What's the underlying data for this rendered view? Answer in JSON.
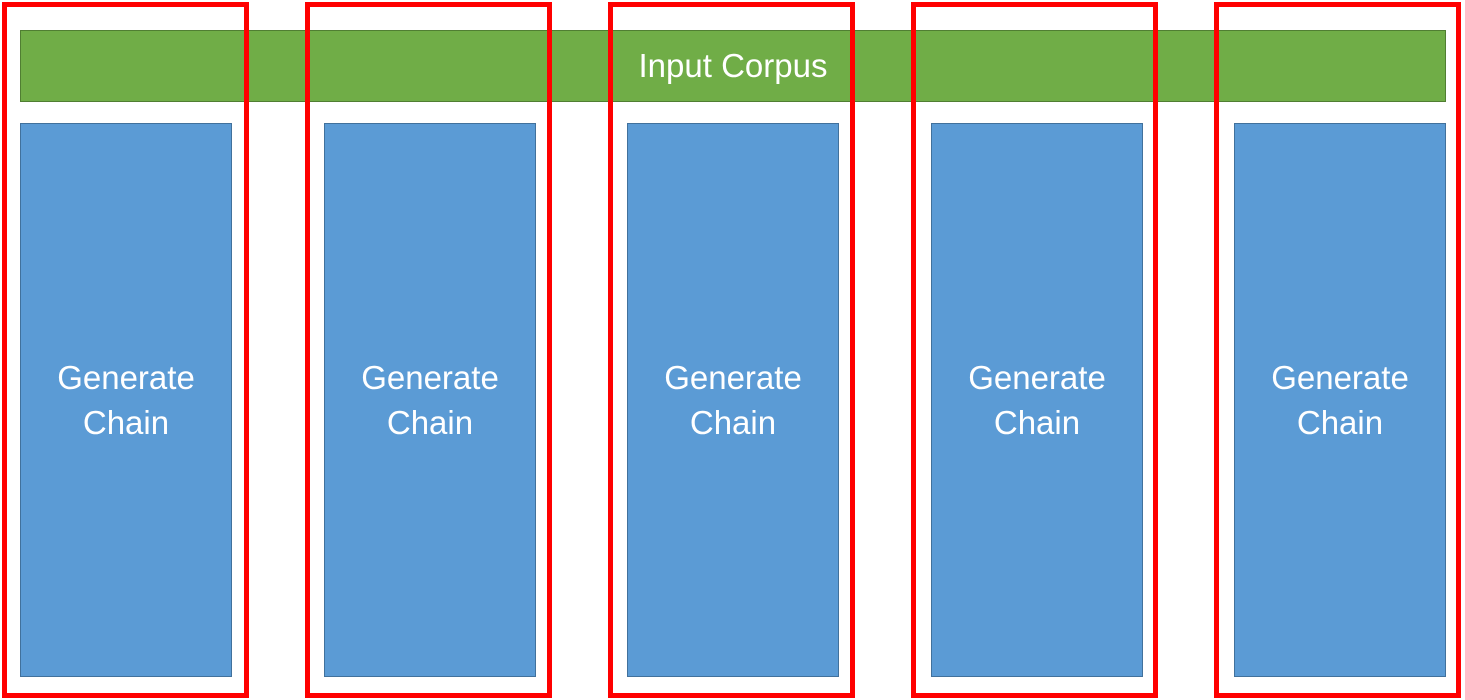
{
  "diagram": {
    "corpus": {
      "label": "Input Corpus",
      "color": "#70ad47"
    },
    "chains": [
      {
        "label": "Generate\nChain"
      },
      {
        "label": "Generate\nChain"
      },
      {
        "label": "Generate\nChain"
      },
      {
        "label": "Generate\nChain"
      },
      {
        "label": "Generate\nChain"
      }
    ],
    "colors": {
      "chain_fill": "#5b9bd5",
      "partition_outline": "#ff0000"
    }
  }
}
